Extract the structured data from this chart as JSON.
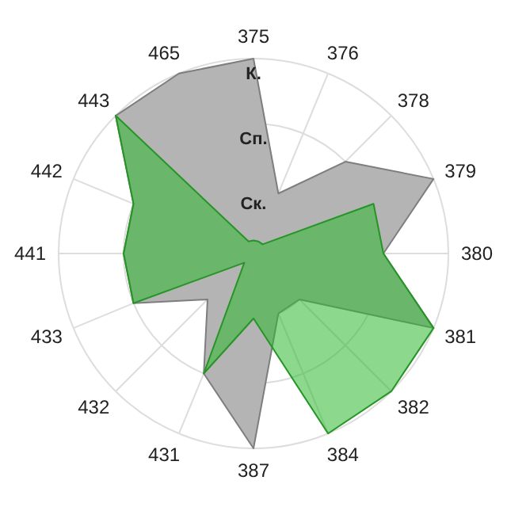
{
  "chart_data": {
    "type": "radar",
    "categories": [
      "375",
      "376",
      "378",
      "379",
      "380",
      "381",
      "382",
      "384",
      "387",
      "431",
      "432",
      "433",
      "441",
      "442",
      "443",
      "465"
    ],
    "series": [
      {
        "color": "#b4b4b4",
        "values": [
          3,
          1,
          2,
          3,
          2,
          3,
          1,
          1,
          3,
          2,
          1,
          2,
          2,
          2,
          3,
          3
        ]
      },
      {
        "color": "#2eb82e",
        "values": [
          0.2,
          0.2,
          0.2,
          2,
          2,
          3,
          3,
          3,
          1,
          2,
          0.2,
          2,
          2,
          2,
          3,
          0.2
        ]
      }
    ],
    "ylim": [
      0,
      3
    ],
    "yticks": [
      {
        "value": 1,
        "label": "Ск."
      },
      {
        "value": 2,
        "label": "Сп."
      },
      {
        "value": 3,
        "label": "К."
      }
    ],
    "grid": true
  }
}
